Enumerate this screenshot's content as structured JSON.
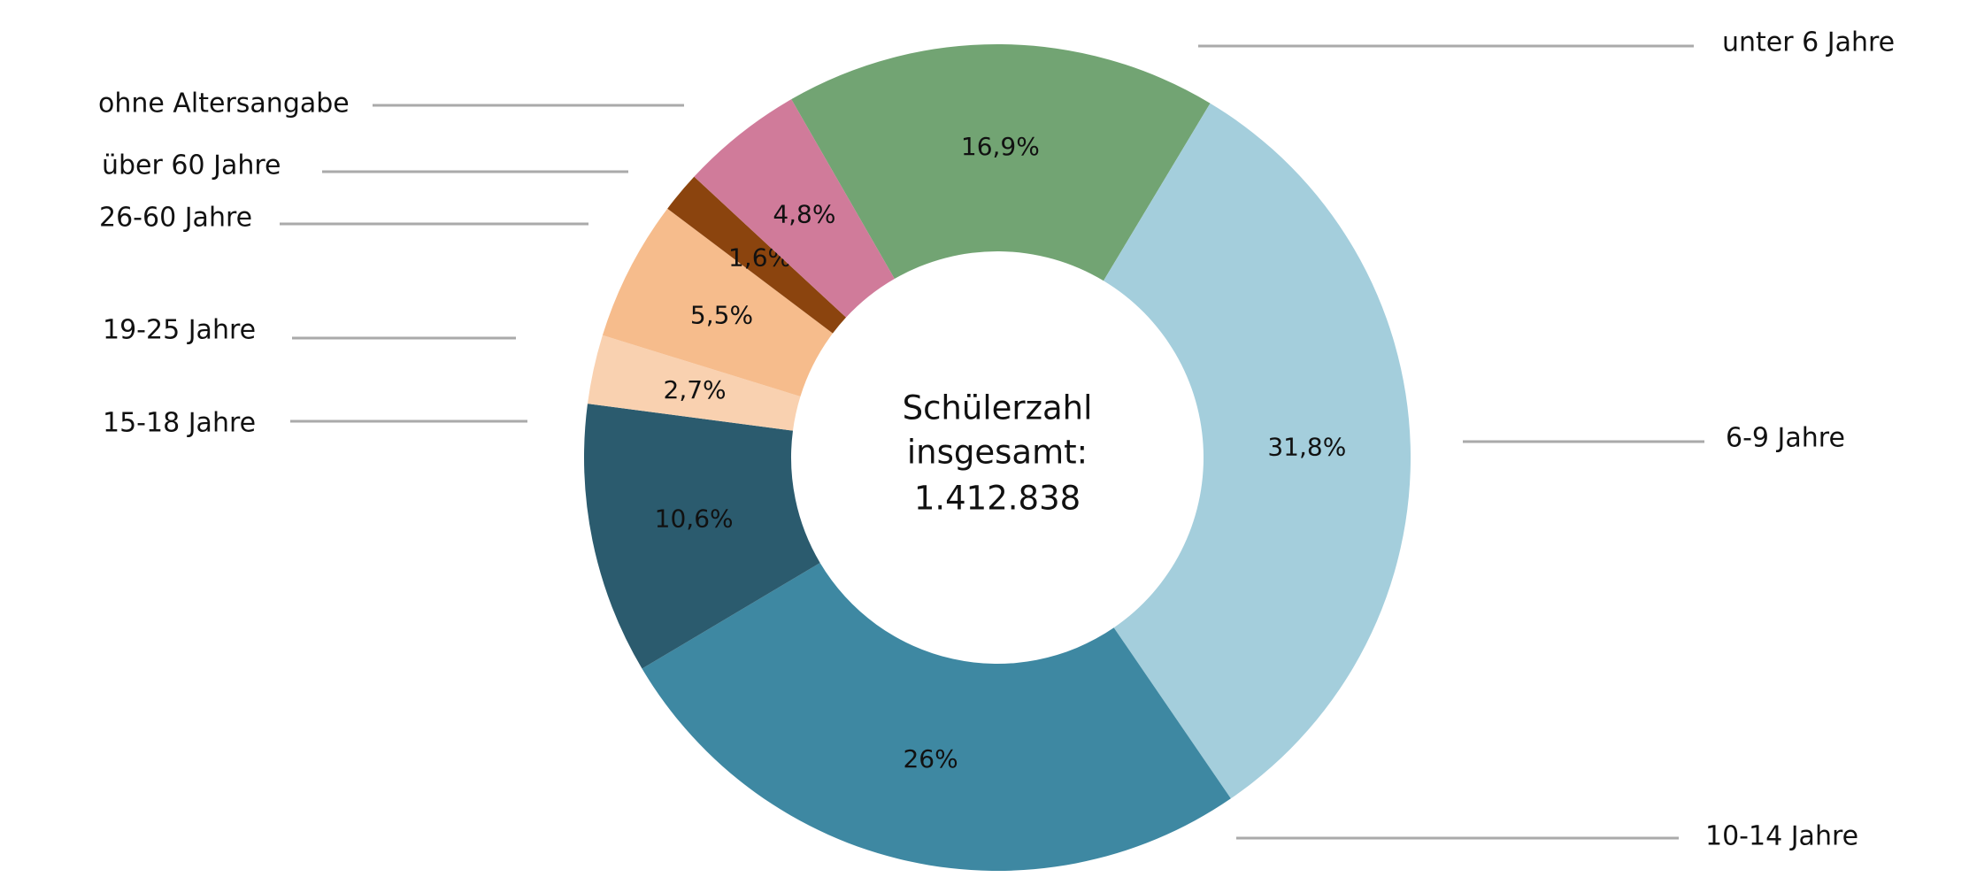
{
  "chart_data": {
    "type": "donut",
    "center_text": [
      "Schülerzahl",
      "insgesamt:",
      "1.412.838"
    ],
    "categories": [
      "unter 6 Jahre",
      "6-9 Jahre",
      "10-14 Jahre",
      "15-18 Jahre",
      "19-25 Jahre",
      "26-60 Jahre",
      "über 60 Jahre",
      "ohne Altersangabe"
    ],
    "values": [
      16.9,
      31.8,
      26,
      10.6,
      2.7,
      5.5,
      1.6,
      4.8
    ],
    "value_labels": [
      "16,9%",
      "31,8%",
      "26%",
      "10,6%",
      "2,7%",
      "5,5%",
      "1,6%",
      "4,8%"
    ],
    "colors": [
      "#72a473",
      "#a4cedc",
      "#3e88a2",
      "#2b5b6e",
      "#f9d1b0",
      "#f6bc8c",
      "#8b440e",
      "#d07b9a"
    ]
  }
}
